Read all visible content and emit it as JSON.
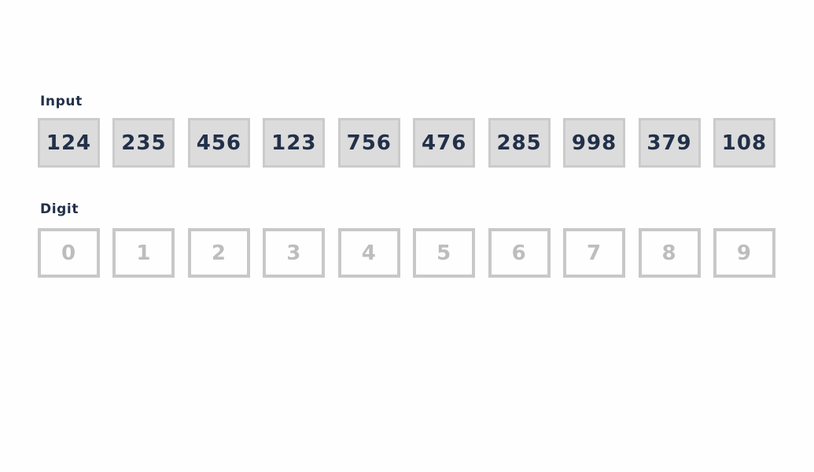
{
  "input": {
    "label": "Input",
    "values": [
      "124",
      "235",
      "456",
      "123",
      "756",
      "476",
      "285",
      "998",
      "379",
      "108"
    ]
  },
  "digit": {
    "label": "Digit",
    "buckets": [
      "0",
      "1",
      "2",
      "3",
      "4",
      "5",
      "6",
      "7",
      "8",
      "9"
    ]
  },
  "colors": {
    "label_text": "#223049",
    "input_fill": "#dcdcdc",
    "input_border": "#cbcbcb",
    "digit_border": "#c8c8c8",
    "digit_text": "#bdbdbd"
  }
}
